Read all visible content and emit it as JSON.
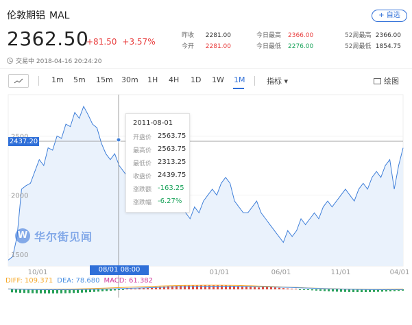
{
  "header": {
    "name": "伦敦期铝",
    "code": "MAL",
    "add_label": "+ 自选",
    "price": "2362.50",
    "change": "+81.50",
    "change_pct": "+3.57%"
  },
  "stats": [
    {
      "label": "昨收",
      "value": "2281.00",
      "tone": "normal"
    },
    {
      "label": "今开",
      "value": "2281.00",
      "tone": "red"
    },
    {
      "label": "今日最高",
      "value": "2366.00",
      "tone": "red"
    },
    {
      "label": "今日最低",
      "value": "2276.00",
      "tone": "green"
    },
    {
      "label": "52周最高",
      "value": "2366.00",
      "tone": "normal"
    },
    {
      "label": "52周最低",
      "value": "1854.75",
      "tone": "normal"
    }
  ],
  "status": {
    "text": "交易中 2018-04-16 20:24:20"
  },
  "toolbar": {
    "periods": [
      "1m",
      "5m",
      "15m",
      "30m",
      "1H",
      "4H",
      "1D",
      "1W",
      "1M"
    ],
    "active_period": "1M",
    "indicators_label": "指标 ▾",
    "draw_label": "绘图"
  },
  "chart": {
    "crosshair_price": "2437.20",
    "crosshair_date": "08/01 08:00",
    "watermark": "华尔街见闻",
    "watermark_logo": "W"
  },
  "tooltip": {
    "date": "2011-08-01",
    "rows": [
      {
        "label": "开盘价",
        "value": "2563.75",
        "tone": "normal"
      },
      {
        "label": "最高价",
        "value": "2563.75",
        "tone": "normal"
      },
      {
        "label": "最低价",
        "value": "2313.25",
        "tone": "normal"
      },
      {
        "label": "收盘价",
        "value": "2439.75",
        "tone": "normal"
      },
      {
        "label": "涨跌额",
        "value": "-163.25",
        "tone": "green"
      },
      {
        "label": "涨跌幅",
        "value": "-6.27%",
        "tone": "green"
      }
    ]
  },
  "macd": {
    "diff_label": "DIFF: 109.371",
    "dea_label": "DEA: 78.680",
    "macd_label": "MACD: 61.382",
    "colors": {
      "diff": "#f5a623",
      "dea": "#4a90e2",
      "macd": "#d0389a"
    }
  },
  "chart_data": {
    "type": "line",
    "ylim": [
      1400,
      2850
    ],
    "y_ticks": [
      1500,
      2000,
      2500
    ],
    "x_ticks": [
      "10/01",
      "08/01",
      "01/01",
      "06/01",
      "11/01",
      "04/01"
    ],
    "values": [
      1450,
      1480,
      1650,
      2050,
      2080,
      2100,
      2200,
      2300,
      2250,
      2400,
      2380,
      2500,
      2480,
      2600,
      2580,
      2700,
      2650,
      2750,
      2680,
      2600,
      2570,
      2439,
      2350,
      2300,
      2350,
      2250,
      2200,
      2150,
      2250,
      2100,
      2050,
      2150,
      2100,
      2000,
      2050,
      2050,
      2000,
      1950,
      1900,
      1950,
      1850,
      1800,
      1900,
      1850,
      1950,
      2000,
      2050,
      2000,
      2100,
      2150,
      2100,
      1950,
      1900,
      1850,
      1850,
      1900,
      1950,
      1850,
      1800,
      1750,
      1700,
      1650,
      1600,
      1700,
      1650,
      1700,
      1800,
      1750,
      1800,
      1850,
      1800,
      1900,
      1950,
      1900,
      1950,
      2000,
      2050,
      2000,
      1950,
      2050,
      2100,
      2050,
      2150,
      2200,
      2150,
      2250,
      2300,
      2050,
      2250,
      2400
    ]
  }
}
